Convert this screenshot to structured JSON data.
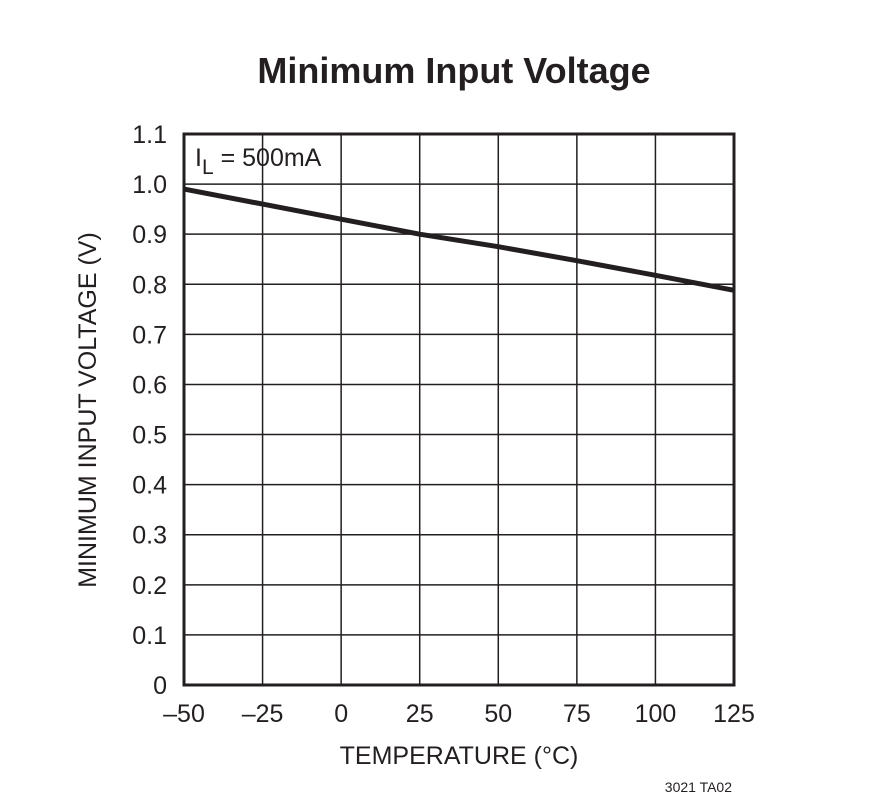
{
  "chart_data": {
    "type": "line",
    "title": "Minimum Input Voltage",
    "xlabel": "TEMPERATURE (°C)",
    "ylabel": "MINIMUM INPUT VOLTAGE (V)",
    "xlim": [
      -50,
      125
    ],
    "ylim": [
      0,
      1.1
    ],
    "x_ticks": [
      -50,
      -25,
      0,
      25,
      50,
      75,
      100,
      125
    ],
    "x_tick_labels": [
      "–50",
      "–25",
      "0",
      "25",
      "50",
      "75",
      "100",
      "125"
    ],
    "y_ticks": [
      0,
      0.1,
      0.2,
      0.3,
      0.4,
      0.5,
      0.6,
      0.7,
      0.8,
      0.9,
      1.0,
      1.1
    ],
    "y_tick_labels": [
      "0",
      "0.1",
      "0.2",
      "0.3",
      "0.4",
      "0.5",
      "0.6",
      "0.7",
      "0.8",
      "0.9",
      "1.0",
      "1.1"
    ],
    "grid": true,
    "annotation": {
      "main": "I",
      "sub": "L",
      "rest": " = 500mA"
    },
    "series": [
      {
        "x": [
          -50,
          -25,
          0,
          25,
          50,
          75,
          100,
          125
        ],
        "y": [
          0.99,
          0.96,
          0.93,
          0.9,
          0.875,
          0.847,
          0.818,
          0.788
        ]
      }
    ],
    "colors": {
      "ink": "#231f20"
    }
  },
  "figure_id": "3021 TA02"
}
